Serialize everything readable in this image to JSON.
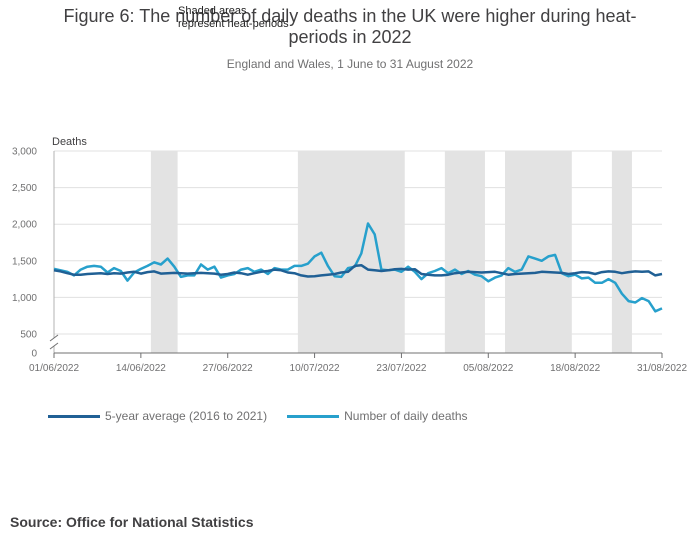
{
  "title": "Figure 6: The number of daily deaths in the UK were higher during heat-periods in 2022",
  "subtitle": "England and Wales, 1 June to 31 August 2022",
  "annotation": {
    "line1": "Shaded areas",
    "line2": "represent heat-periods"
  },
  "source": "Source: Office for National Statistics",
  "colors": {
    "average": "#206095",
    "daily": "#27a0cc",
    "shade": "#e3e3e3",
    "grid": "#e0e0e0"
  },
  "chart_data": {
    "type": "line",
    "ylabel": "Deaths",
    "xlabel": "",
    "ylim": [
      0,
      3000
    ],
    "y_axis_break": [
      0,
      500
    ],
    "yticks": [
      0,
      500,
      1000,
      1500,
      2000,
      2500,
      3000
    ],
    "ytick_labels": [
      "0",
      "500",
      "1,000",
      "1,500",
      "2,000",
      "2,500",
      "3,000"
    ],
    "x_start": "01/06/2022",
    "x_end": "31/08/2022",
    "xtick_days": [
      0,
      13,
      26,
      39,
      52,
      65,
      78,
      91
    ],
    "xtick_labels": [
      "01/06/2022",
      "14/06/2022",
      "27/06/2022",
      "10/07/2022",
      "23/07/2022",
      "05/08/2022",
      "18/08/2022",
      "31/08/2022"
    ],
    "heat_periods": [
      {
        "start": "16/06/2022",
        "end": "19/06/2022"
      },
      {
        "start": "08/07/2022",
        "end": "23/07/2022"
      },
      {
        "start": "30/07/2022",
        "end": "04/08/2022"
      },
      {
        "start": "08/08/2022",
        "end": "17/08/2022"
      },
      {
        "start": "24/08/2022",
        "end": "26/08/2022"
      }
    ],
    "series": [
      {
        "name": "5-year average (2016 to 2021)",
        "values": [
          1370,
          1355,
          1330,
          1310,
          1310,
          1320,
          1325,
          1330,
          1320,
          1330,
          1325,
          1340,
          1350,
          1325,
          1345,
          1355,
          1325,
          1330,
          1335,
          1330,
          1325,
          1330,
          1335,
          1330,
          1325,
          1310,
          1320,
          1340,
          1330,
          1310,
          1330,
          1350,
          1360,
          1380,
          1370,
          1340,
          1330,
          1300,
          1285,
          1290,
          1300,
          1310,
          1320,
          1340,
          1350,
          1430,
          1440,
          1380,
          1370,
          1360,
          1370,
          1385,
          1390,
          1380,
          1385,
          1320,
          1310,
          1300,
          1300,
          1310,
          1330,
          1340,
          1350,
          1345,
          1340,
          1345,
          1350,
          1330,
          1310,
          1320,
          1325,
          1330,
          1335,
          1350,
          1345,
          1340,
          1335,
          1320,
          1330,
          1345,
          1340,
          1320,
          1345,
          1355,
          1350,
          1330,
          1345,
          1355,
          1350,
          1355,
          1300,
          1320
        ]
      },
      {
        "name": "Number of daily deaths",
        "values": [
          1390,
          1370,
          1350,
          1300,
          1380,
          1420,
          1430,
          1420,
          1340,
          1400,
          1360,
          1230,
          1340,
          1390,
          1430,
          1480,
          1450,
          1530,
          1420,
          1280,
          1300,
          1300,
          1450,
          1380,
          1420,
          1270,
          1300,
          1320,
          1380,
          1400,
          1350,
          1380,
          1320,
          1400,
          1380,
          1380,
          1430,
          1430,
          1460,
          1560,
          1610,
          1430,
          1290,
          1280,
          1400,
          1420,
          1600,
          2010,
          1860,
          1380,
          1370,
          1380,
          1350,
          1420,
          1350,
          1250,
          1330,
          1360,
          1400,
          1330,
          1380,
          1320,
          1360,
          1310,
          1290,
          1220,
          1270,
          1300,
          1400,
          1350,
          1380,
          1560,
          1530,
          1500,
          1560,
          1580,
          1330,
          1290,
          1310,
          1260,
          1270,
          1200,
          1200,
          1250,
          1200,
          1050,
          950,
          930,
          990,
          950,
          810,
          850
        ]
      }
    ]
  }
}
